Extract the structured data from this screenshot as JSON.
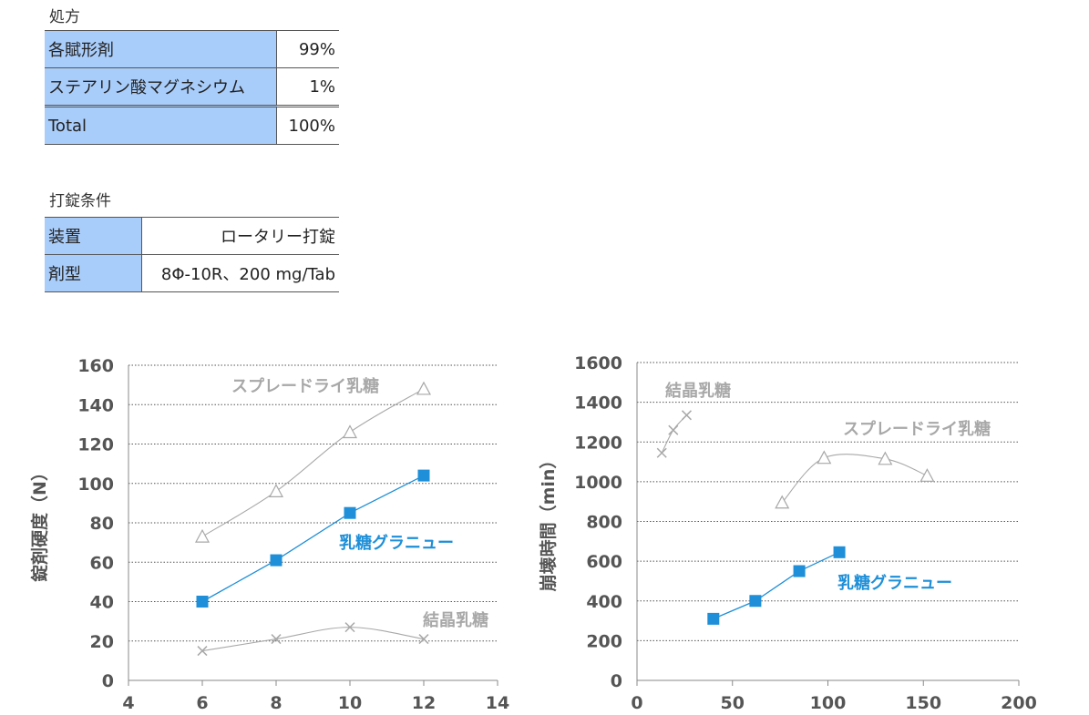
{
  "formulation": {
    "caption": "処方",
    "rows": [
      {
        "label": "各賦形剤",
        "value": "99%"
      },
      {
        "label": "ステアリン酸マグネシウム",
        "value": "1%"
      },
      {
        "label": "Total",
        "value": "100%"
      }
    ]
  },
  "conditions": {
    "caption": "打錠条件",
    "rows": [
      {
        "label": "装置",
        "value": "ロータリー打錠"
      },
      {
        "label": "剤型",
        "value": "8Φ-10R、200 mg/Tab"
      }
    ]
  },
  "colors": {
    "granule": "#1e8fd8",
    "gray": "#a8a8a8",
    "table_header": "#a9cdfa"
  },
  "chart_data": [
    {
      "type": "scatter",
      "title": "",
      "xlabel": "",
      "ylabel": "錠剤硬度（N）",
      "xlim": [
        4,
        14
      ],
      "ylim": [
        0,
        160
      ],
      "xticks": [
        4,
        6,
        8,
        10,
        12,
        14
      ],
      "yticks": [
        0,
        20,
        40,
        60,
        80,
        100,
        120,
        140,
        160
      ],
      "grid": "horizontal-dotted",
      "series": [
        {
          "name": "スプレードライ乳糖",
          "marker": "triangle",
          "color": "#a8a8a8",
          "line": "smooth",
          "x": [
            6,
            8,
            10,
            12
          ],
          "y": [
            73,
            96,
            126,
            148
          ]
        },
        {
          "name": "乳糖グラニュー",
          "marker": "square",
          "color": "#1e8fd8",
          "line": "straight",
          "x": [
            6,
            8,
            10,
            12
          ],
          "y": [
            40,
            61,
            85,
            104
          ]
        },
        {
          "name": "結晶乳糖",
          "marker": "x",
          "color": "#a8a8a8",
          "line": "smooth",
          "x": [
            6,
            8,
            10,
            12
          ],
          "y": [
            15,
            21,
            27,
            21
          ]
        }
      ]
    },
    {
      "type": "scatter",
      "title": "",
      "xlabel": "",
      "ylabel": "崩壊時間（min）",
      "xlim": [
        0,
        200
      ],
      "ylim": [
        0,
        1600
      ],
      "xticks": [
        0,
        50,
        100,
        150,
        200
      ],
      "yticks": [
        0,
        200,
        400,
        600,
        800,
        1000,
        1200,
        1400,
        1600
      ],
      "grid": "horizontal-dotted",
      "series": [
        {
          "name": "結晶乳糖",
          "marker": "x",
          "color": "#a8a8a8",
          "line": "smooth",
          "x": [
            13,
            19,
            26
          ],
          "y": [
            1145,
            1260,
            1335
          ]
        },
        {
          "name": "スプレードライ乳糖",
          "marker": "triangle",
          "color": "#a8a8a8",
          "line": "smooth",
          "x": [
            76,
            98,
            130,
            152
          ],
          "y": [
            895,
            1120,
            1115,
            1030
          ]
        },
        {
          "name": "乳糖グラニュー",
          "marker": "square",
          "color": "#1e8fd8",
          "line": "straight",
          "x": [
            40,
            62,
            85,
            106
          ],
          "y": [
            310,
            400,
            550,
            645
          ]
        }
      ]
    }
  ]
}
